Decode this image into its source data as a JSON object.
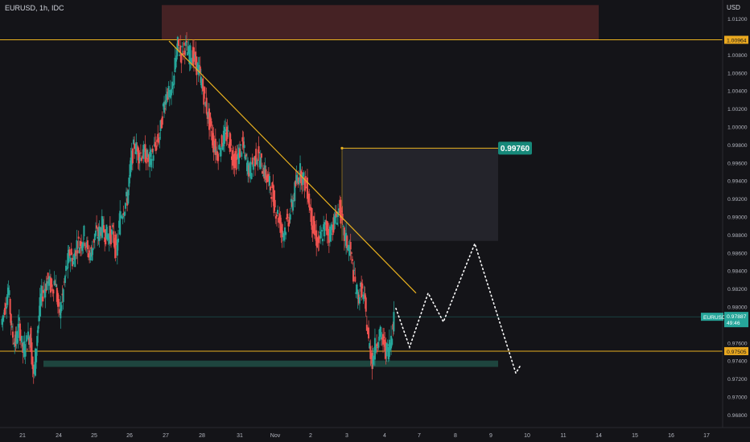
{
  "header": {
    "symbol": "EURUSD, 1h, IDC",
    "currency": "USD"
  },
  "price_axis": {
    "ticks": [
      "1.01200",
      "1.00964",
      "1.00800",
      "1.00600",
      "1.00400",
      "1.00200",
      "1.00000",
      "0.99800",
      "0.99600",
      "0.99400",
      "0.99200",
      "0.99000",
      "0.98800",
      "0.98600",
      "0.98400",
      "0.98200",
      "0.98000",
      "0.97800",
      "0.97600",
      "0.97505",
      "0.97400",
      "0.97200",
      "0.97000",
      "0.96800"
    ],
    "resistance_tag": "1.00964",
    "support_tag": "0.97505",
    "current_price_symbol": "EURUSD",
    "current_price": "0.97887",
    "countdown": "49:46",
    "target_label": "0.99760"
  },
  "time_axis": {
    "labels": [
      "21",
      "24",
      "25",
      "26",
      "27",
      "28",
      "31",
      "Nov",
      "2",
      "3",
      "4",
      "7",
      "8",
      "9",
      "10",
      "11",
      "14",
      "15",
      "16",
      "17"
    ]
  },
  "colors": {
    "background": "#141418",
    "candle_up": "#26a69a",
    "candle_down": "#ef5350",
    "trendline": "#e9b11f",
    "resistance_zone": "#4a2326",
    "support_zone": "#1f4a43",
    "target_box": "#26262e",
    "target_badge": "#17897a",
    "price_badge": "#26a69a",
    "level_badge": "#e9a820",
    "projection": "#ffffff"
  },
  "chart_data": {
    "type": "candlestick",
    "symbol": "EURUSD",
    "timeframe": "1h",
    "ylim": [
      0.9675,
      1.0135
    ],
    "resistance_level": 1.00964,
    "support_level": 0.97505,
    "target_level": 0.9976,
    "current_price": 0.97887,
    "zones": [
      {
        "name": "resistance-zone",
        "from_price": 1.0096,
        "to_price": 1.0135
      },
      {
        "name": "support-zone",
        "from_price": 0.9733,
        "to_price": 0.974
      },
      {
        "name": "target-box",
        "from_price": 0.9873,
        "to_price": 0.9976
      }
    ],
    "trendline": [
      {
        "date": "Oct 27",
        "price": 1.0095
      },
      {
        "date": "Nov 4",
        "price": 0.9815
      }
    ],
    "projection_path": [
      0.9785,
      0.98,
      0.9755,
      0.9815,
      0.9785,
      0.987,
      0.973,
      0.9735
    ],
    "price_path": [
      0.978,
      0.98,
      0.982,
      0.977,
      0.976,
      0.978,
      0.975,
      0.976,
      0.977,
      0.972,
      0.977,
      0.981,
      0.982,
      0.983,
      0.982,
      0.983,
      0.979,
      0.981,
      0.984,
      0.986,
      0.985,
      0.987,
      0.987,
      0.988,
      0.986,
      0.986,
      0.988,
      0.988,
      0.989,
      0.988,
      0.988,
      0.988,
      0.986,
      0.99,
      0.991,
      0.992,
      0.996,
      0.998,
      0.997,
      0.997,
      0.997,
      0.996,
      0.997,
      0.998,
      0.999,
      1.002,
      1.004,
      1.003,
      1.006,
      1.009,
      1.008,
      1.009,
      1.008,
      1.008,
      1.007,
      1.006,
      1.004,
      1.002,
      1.0,
      0.998,
      0.997,
      0.998,
      0.999,
      0.999,
      0.997,
      0.996,
      0.997,
      0.998,
      0.996,
      0.995,
      0.996,
      0.997,
      0.996,
      0.995,
      0.994,
      0.993,
      0.991,
      0.99,
      0.988,
      0.989,
      0.99,
      0.992,
      0.994,
      0.995,
      0.994,
      0.993,
      0.99,
      0.988,
      0.987,
      0.988,
      0.989,
      0.988,
      0.989,
      0.99,
      0.991,
      0.988,
      0.987,
      0.986,
      0.983,
      0.981,
      0.982,
      0.98,
      0.976,
      0.974,
      0.976,
      0.977,
      0.976,
      0.975,
      0.976,
      0.979
    ]
  }
}
